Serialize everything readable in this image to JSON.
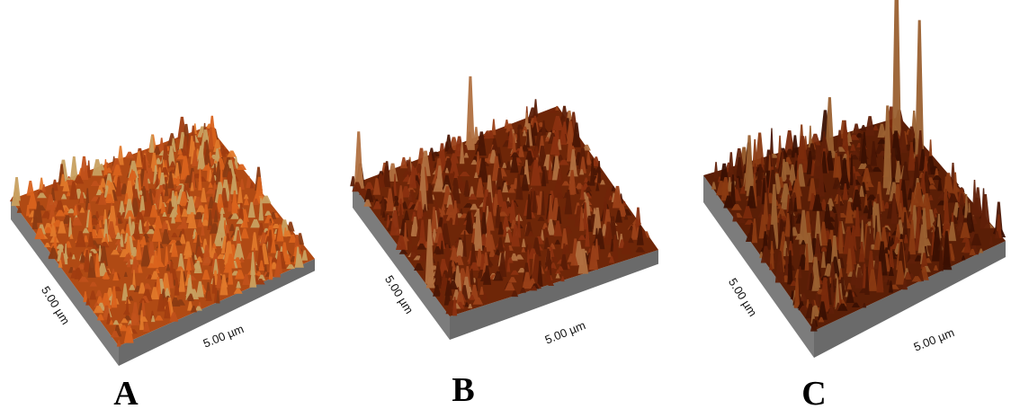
{
  "panels": [
    {
      "label": "A",
      "axis_left": "5.00 µm",
      "axis_right": "5.00 µm"
    },
    {
      "label": "B",
      "axis_left": "5.00 µm",
      "axis_right": "5.00 µm"
    },
    {
      "label": "C",
      "axis_left": "5.00 µm",
      "axis_right": "5.00 µm"
    }
  ]
}
